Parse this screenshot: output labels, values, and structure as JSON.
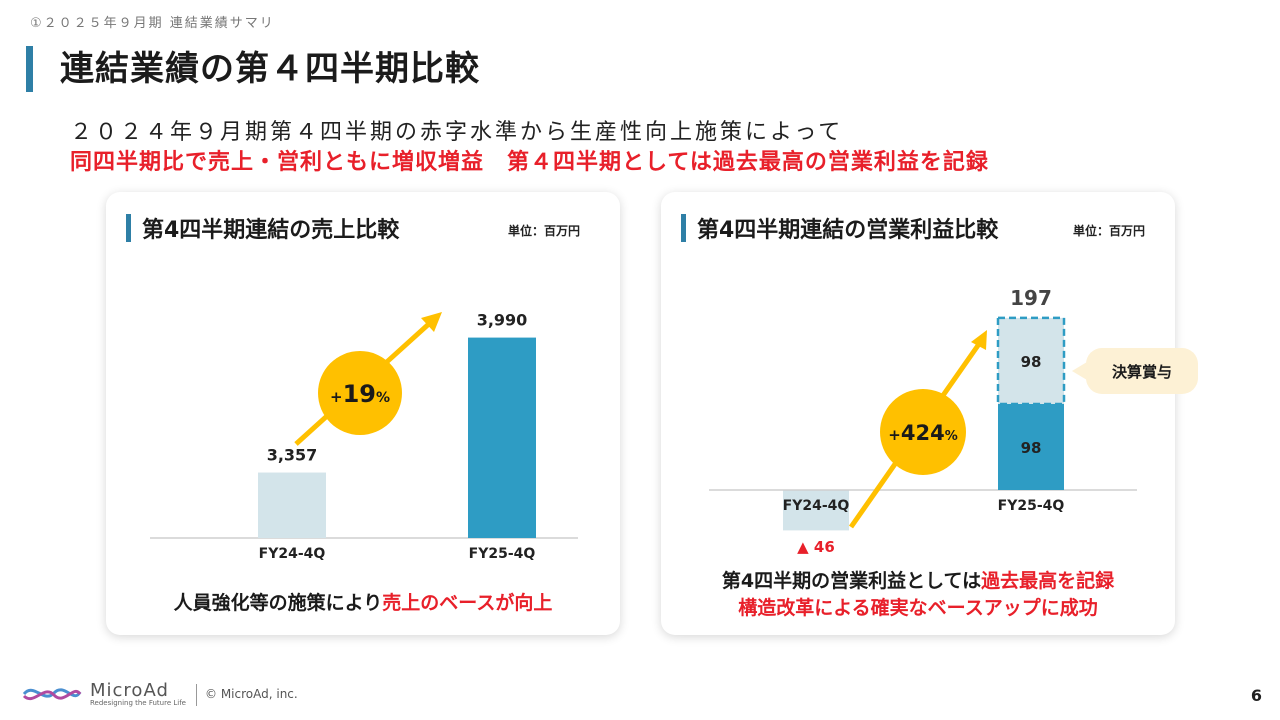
{
  "header": {
    "breadcrumb": "①２０２５年９月期 連結業績サマリ",
    "title": "連結業績の第４四半期比較",
    "subtitle_line1": "２０２４年９月期第４四半期の赤字水準から生産性向上施策によって",
    "subtitle_line2": "同四半期比で売上・営利ともに増収増益　第４四半期としては過去最高の営業利益を記録"
  },
  "sales_card": {
    "title": "第4四半期連結の売上比較",
    "unit": "単位：百万円",
    "growth_plus": "+",
    "growth_value": "19",
    "growth_pct": "%",
    "caption_black": "人員強化等の施策により",
    "caption_red": "売上のベースが向上"
  },
  "profit_card": {
    "title": "第4四半期連結の営業利益比較",
    "unit": "単位：百万円",
    "growth_plus": "+",
    "growth_value": "424",
    "growth_pct": "%",
    "total_label": "197",
    "bonus_label": "決算賞与",
    "caption_line1_black": "第4四半期の営業利益としては",
    "caption_line1_red": "過去最高を記録",
    "caption_line2_red": "構造改革による確実なベースアップに成功"
  },
  "chart_data": [
    {
      "type": "bar",
      "title": "第4四半期連結の売上比較",
      "unit": "単位：百万円",
      "categories": [
        "FY24-4Q",
        "FY25-4Q"
      ],
      "values": [
        3357,
        3990
      ],
      "value_labels": [
        "3,357",
        "3,990"
      ],
      "bar_colors": [
        "#d3e4ea",
        "#2e9cc4"
      ],
      "growth": "+19%"
    },
    {
      "type": "bar",
      "title": "第4四半期連結の営業利益比較",
      "unit": "単位：百万円",
      "categories": [
        "FY24-4Q",
        "FY25-4Q"
      ],
      "series": [
        {
          "name": "",
          "values": [
            -46,
            98
          ],
          "value_labels": [
            "▲ 46",
            "98"
          ]
        },
        {
          "name": "決算賞与",
          "values": [
            0,
            98
          ],
          "value_labels": [
            "",
            "98"
          ]
        }
      ],
      "totals": [
        -46,
        197
      ],
      "growth": "+424%"
    }
  ],
  "footer": {
    "brand": "MicroAd",
    "tagline": "Redesigning the Future Life",
    "copyright": "© MicroAd, inc.",
    "page_number": "6"
  },
  "colors": {
    "accent": "#2e7fa6",
    "bar_dark": "#2e9cc4",
    "bar_light": "#d3e4ea",
    "highlight_red": "#e8202a",
    "growth_yellow": "#ffc000"
  }
}
